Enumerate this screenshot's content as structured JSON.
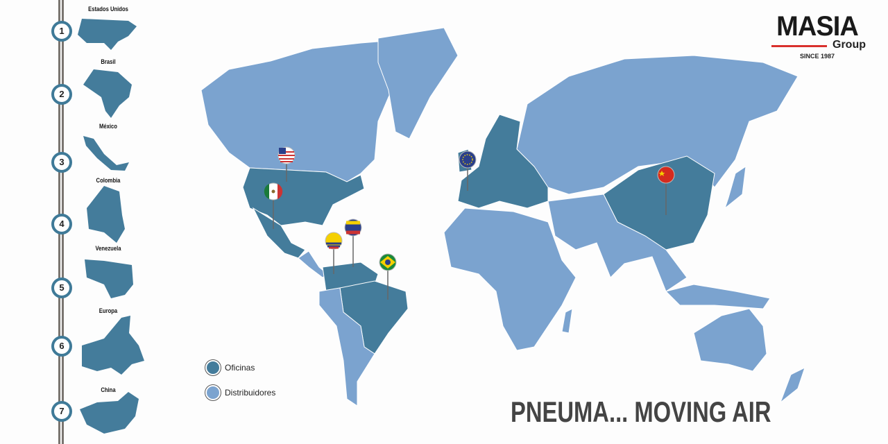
{
  "logo": {
    "name": "MASIA",
    "sub": "Group",
    "since": "SINCE 1987",
    "accent": "#d9302c"
  },
  "sidebar": {
    "items": [
      {
        "num": "1",
        "label": "Estados Unidos"
      },
      {
        "num": "2",
        "label": "Brasil"
      },
      {
        "num": "3",
        "label": "México"
      },
      {
        "num": "4",
        "label": "Colombia"
      },
      {
        "num": "5",
        "label": "Venezuela"
      },
      {
        "num": "6",
        "label": "Europa"
      },
      {
        "num": "7",
        "label": "China"
      }
    ]
  },
  "legend": {
    "offices": "Oficinas",
    "distributors": "Distribuidores"
  },
  "colors": {
    "offices": "#447c9b",
    "distributors": "#7ba3cf"
  },
  "slogan": "PNEUMA... MOVING AIR",
  "pins": [
    "flag-usa",
    "flag-mexico",
    "flag-colombia",
    "flag-venezuela",
    "flag-brazil",
    "flag-eu",
    "flag-china"
  ]
}
